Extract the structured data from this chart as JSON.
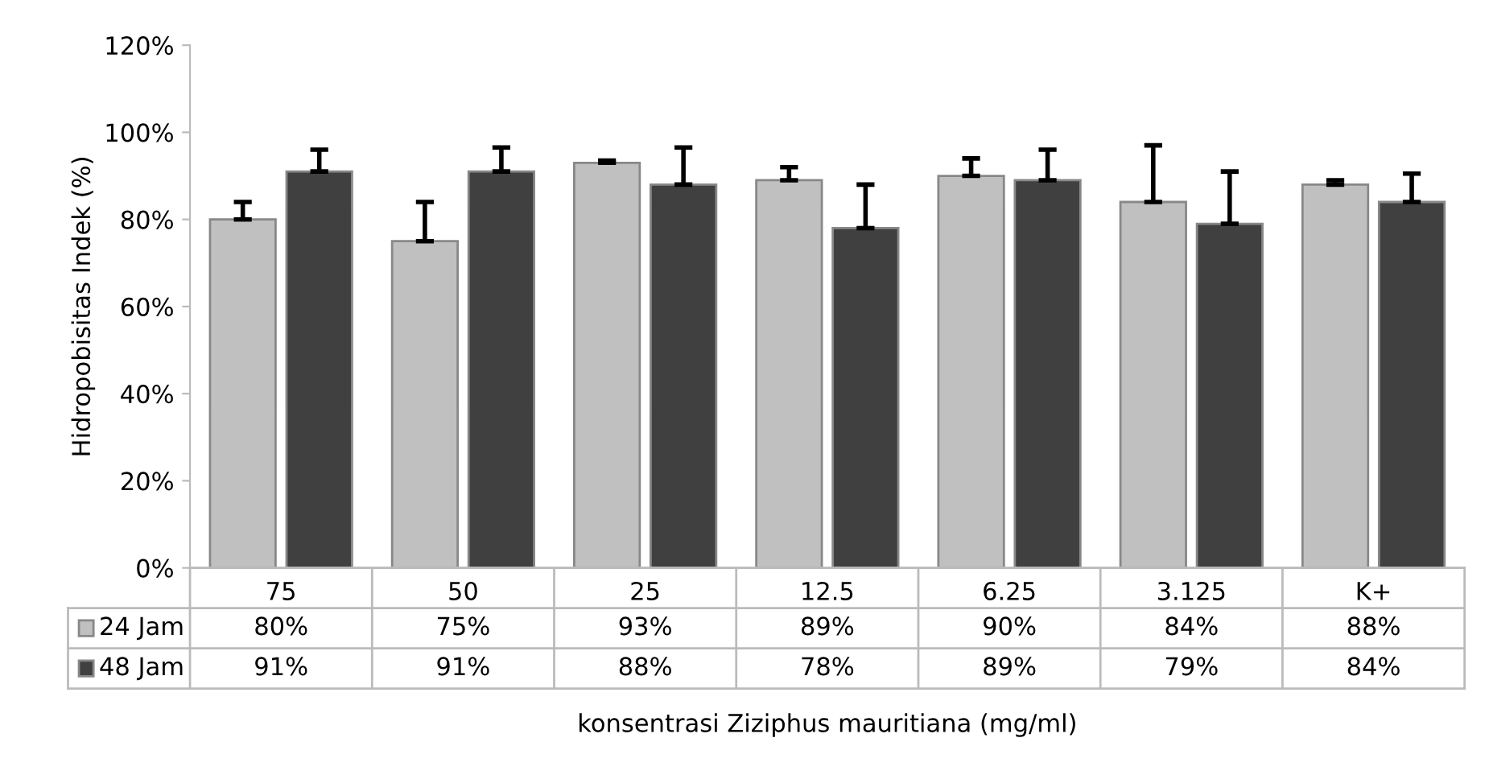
{
  "chart_data": {
    "type": "bar",
    "categories": [
      "75",
      "50",
      "25",
      "12.5",
      "6.25",
      "3.125",
      "K+"
    ],
    "series": [
      {
        "name": "24 Jam",
        "color": "#c0c0c0",
        "values": [
          80,
          75,
          93,
          89,
          90,
          84,
          88
        ],
        "errors": [
          [
            80,
            84
          ],
          [
            75,
            84
          ],
          [
            93,
            93.5
          ],
          [
            89,
            92
          ],
          [
            90,
            94
          ],
          [
            84,
            97
          ],
          [
            88,
            89
          ]
        ],
        "value_labels": [
          "80%",
          "75%",
          "93%",
          "89%",
          "90%",
          "84%",
          "88%"
        ]
      },
      {
        "name": "48 Jam",
        "color": "#404040",
        "values": [
          91,
          91,
          88,
          78,
          89,
          79,
          84
        ],
        "errors": [
          [
            91,
            96
          ],
          [
            91,
            96.5
          ],
          [
            88,
            96.5
          ],
          [
            78,
            88
          ],
          [
            89,
            96
          ],
          [
            79,
            91
          ],
          [
            84,
            90.5
          ]
        ],
        "value_labels": [
          "91%",
          "91%",
          "88%",
          "78%",
          "89%",
          "79%",
          "84%"
        ]
      }
    ],
    "ylim": [
      0,
      120
    ],
    "yticks": [
      {
        "value": 0,
        "label": "0%"
      },
      {
        "value": 20,
        "label": "20%"
      },
      {
        "value": 40,
        "label": "40%"
      },
      {
        "value": 60,
        "label": "60%"
      },
      {
        "value": 80,
        "label": "80%"
      },
      {
        "value": 100,
        "label": "100%"
      },
      {
        "value": 120,
        "label": "120%"
      }
    ],
    "ylabel": "Hidropobisitas Indek (%)",
    "xlabel": "konsentrasi Ziziphus mauritiana (mg/ml)",
    "grid": false,
    "legend": "bottom left"
  }
}
